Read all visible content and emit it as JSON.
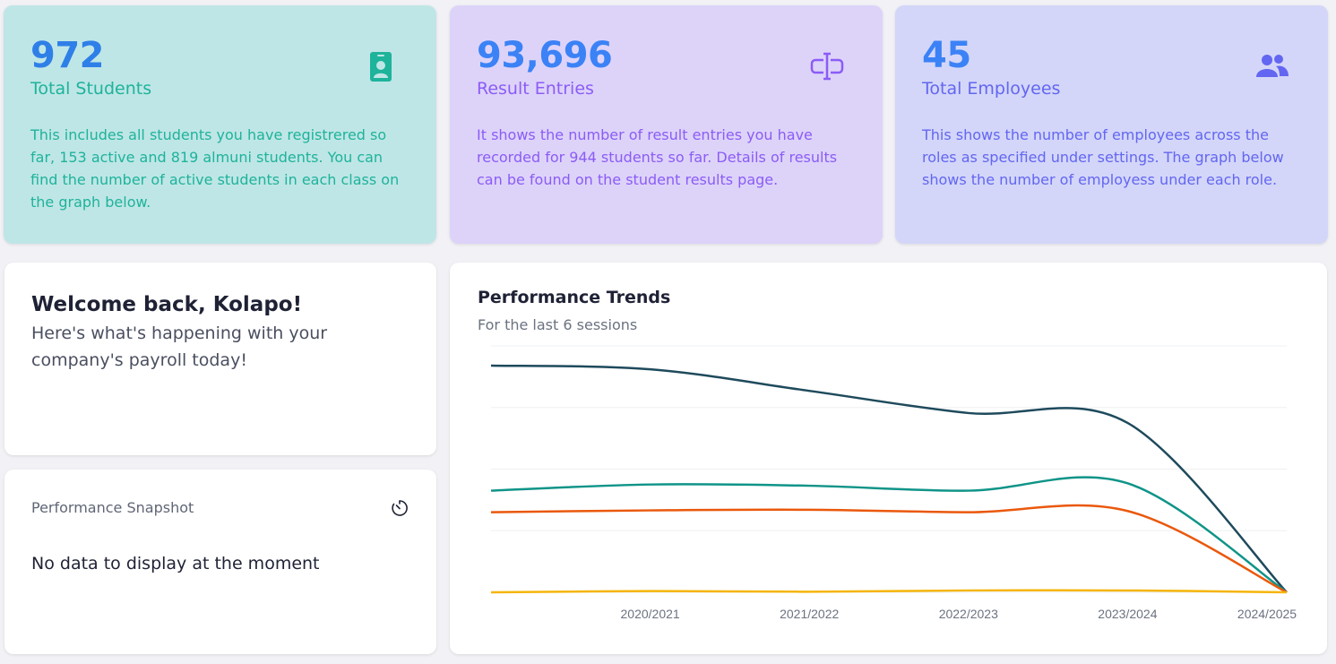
{
  "stats": {
    "students": {
      "value": "972",
      "label": "Total Students",
      "description": "This includes all students you have registrered so far, 153 active and  819 almuni students. You can find the number of active students in each class on the graph below.",
      "icon": "id-badge-icon",
      "color": "#1eb39b"
    },
    "results": {
      "value": "93,696",
      "label": "Result Entries",
      "description": "It shows the number of result entries you have recorded for 944 students so far. Details of results can be found on the student results page.",
      "icon": "text-cursor-icon",
      "color": "#8b5cf6"
    },
    "employees": {
      "value": "45",
      "label": "Total Employees",
      "description": "This shows the number of employees across the roles as specified under settings. The graph below shows the number of employess under each role.",
      "icon": "users-icon",
      "color": "#6366f1"
    }
  },
  "welcome": {
    "title": "Welcome back, Kolapo!",
    "subtitle": "Here's what's happening with your company's payroll today!"
  },
  "snapshot": {
    "title": "Performance Snapshot",
    "icon": "refresh-timer-icon",
    "empty_message": "No data to display at the moment"
  },
  "trends": {
    "title": "Performance Trends",
    "subtitle": "For the last 6 sessions"
  },
  "chart_data": {
    "type": "line",
    "title": "Performance Trends",
    "subtitle": "For the last 6 sessions",
    "x": [
      "",
      "2020/2021",
      "2021/2022",
      "2022/2023",
      "2023/2024",
      "2024/2025"
    ],
    "ylim": [
      0,
      4
    ],
    "grid": true,
    "smooth": true,
    "series": [
      {
        "color": "#1e4a5c",
        "values": [
          3.68,
          3.62,
          3.27,
          2.91,
          2.75,
          0
        ]
      },
      {
        "color": "#0f9488",
        "values": [
          1.65,
          1.75,
          1.73,
          1.65,
          1.77,
          0
        ]
      },
      {
        "color": "#ea580c",
        "values": [
          1.3,
          1.33,
          1.34,
          1.3,
          1.32,
          0
        ]
      },
      {
        "color": "#f5b50a",
        "values": [
          0.0,
          0.02,
          0.01,
          0.03,
          0.03,
          0
        ]
      }
    ]
  }
}
